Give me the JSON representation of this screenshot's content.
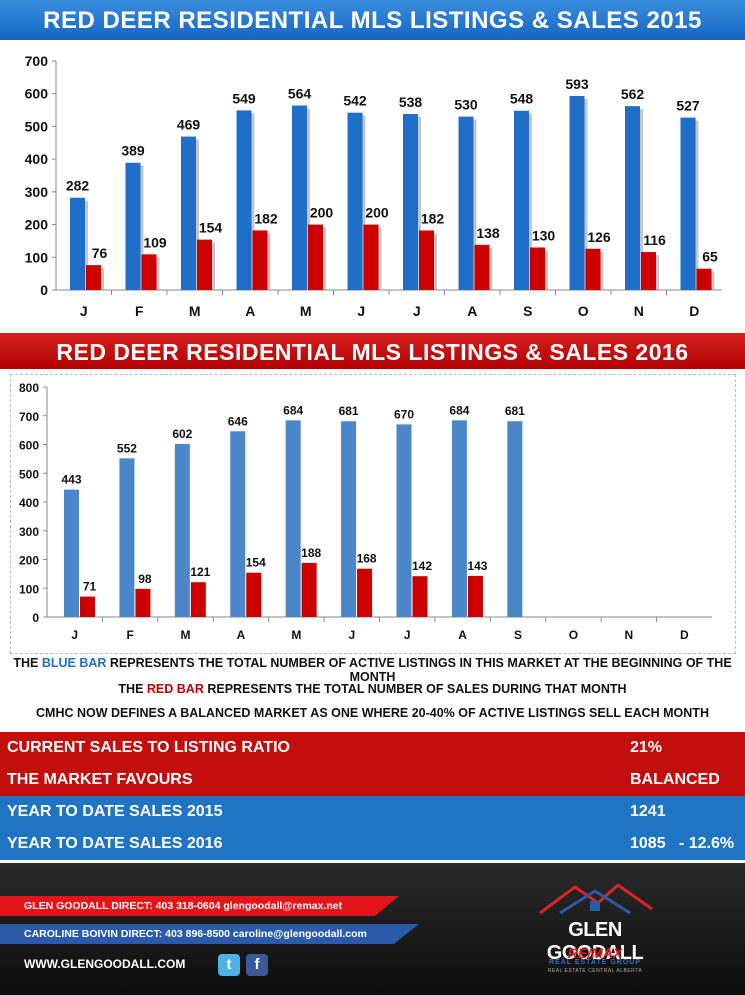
{
  "chart_data": [
    {
      "type": "bar",
      "title": "RED DEER RESIDENTIAL MLS LISTINGS & SALES 2015",
      "categories": [
        "J",
        "F",
        "M",
        "A",
        "M",
        "J",
        "J",
        "A",
        "S",
        "O",
        "N",
        "D"
      ],
      "series": [
        {
          "values": [
            282,
            389,
            469,
            549,
            564,
            542,
            538,
            530,
            548,
            593,
            562,
            527
          ],
          "color": "#1f6fc8"
        },
        {
          "values": [
            76,
            109,
            154,
            182,
            200,
            200,
            182,
            138,
            130,
            126,
            116,
            65
          ],
          "color": "#cc0000"
        }
      ],
      "ylim": [
        0,
        700
      ],
      "yticks": [
        0,
        100,
        200,
        300,
        400,
        500,
        600,
        700
      ],
      "grid": false
    },
    {
      "type": "bar",
      "title": "RED DEER RESIDENTIAL MLS LISTINGS & SALES 2016",
      "categories": [
        "J",
        "F",
        "M",
        "A",
        "M",
        "J",
        "J",
        "A",
        "S",
        "O",
        "N",
        "D"
      ],
      "series": [
        {
          "values": [
            443,
            552,
            602,
            646,
            684,
            681,
            670,
            684,
            681,
            null,
            null,
            null
          ],
          "color": "#4a86c8"
        },
        {
          "values": [
            71,
            98,
            121,
            154,
            188,
            168,
            142,
            143,
            null,
            null,
            null,
            null
          ],
          "color": "#cc0000"
        }
      ],
      "ylim": [
        0,
        800
      ],
      "yticks": [
        0,
        100,
        200,
        300,
        400,
        500,
        600,
        700,
        800
      ],
      "grid": false
    }
  ],
  "legend": {
    "line1_pre": "THE ",
    "line1_blue": "BLUE BAR",
    "line1_post": " REPRESENTS THE TOTAL NUMBER OF ACTIVE LISTINGS IN THIS MARKET AT THE BEGINNING OF THE MONTH",
    "line2_pre": "THE ",
    "line2_red": "RED BAR",
    "line2_post": " REPRESENTS THE TOTAL NUMBER OF SALES DURING THAT MONTH",
    "line3": "CMHC NOW DEFINES A BALANCED MARKET AS ONE WHERE 20-40% OF ACTIVE LISTINGS SELL EACH MONTH"
  },
  "stats": {
    "ratio_label": "CURRENT SALES TO LISTING RATIO",
    "ratio_value": "21%",
    "favours_label": "THE MARKET FAVOURS",
    "favours_value": "BALANCED",
    "ytd2015_label": "YEAR TO DATE SALES 2015",
    "ytd2015_value": "1241",
    "ytd2016_label": "YEAR TO DATE SALES 2016",
    "ytd2016_value": "1085   - 12.6%"
  },
  "footer": {
    "agent1": "GLEN GOODALL  DIRECT: 403 318-0604  glengoodall@remax.net",
    "agent2": "CAROLINE BOIVIN DIRECT: 403 896-8500 caroline@glengoodall.com",
    "website": "WWW.GLENGOODALL.COM",
    "logo_name": "GLEN GOODALL",
    "logo_brand": "RE/MAX",
    "logo_group": "REAL ESTATE GROUP",
    "logo_sub": "REAL ESTATE CENTRAL ALBERTA"
  },
  "icons": {
    "twitter": "twitter-icon",
    "facebook": "facebook-icon"
  }
}
